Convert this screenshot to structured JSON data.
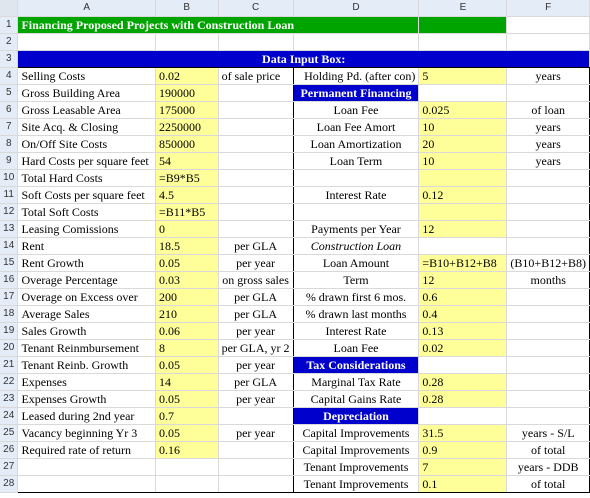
{
  "columns": [
    "A",
    "B",
    "C",
    "D",
    "E",
    "F"
  ],
  "row_numbers": [
    "1",
    "2",
    "3",
    "4",
    "5",
    "6",
    "7",
    "8",
    "9",
    "10",
    "11",
    "12",
    "13",
    "14",
    "15",
    "16",
    "17",
    "18",
    "19",
    "20",
    "21",
    "22",
    "23",
    "24",
    "25",
    "26",
    "27",
    "28"
  ],
  "title": "Financing Proposed Projects with Construction Loan",
  "data_input_box": "Data Input Box:",
  "rows": {
    "r4": {
      "a": "Selling Costs",
      "b": "0.02",
      "c": "of sale price",
      "d": "Holding Pd. (after con)",
      "e": "5",
      "f": "years"
    },
    "r5": {
      "a": "Gross Building Area",
      "b": "190000",
      "c": "",
      "d": "Permanent Financing",
      "e": "",
      "f": ""
    },
    "r6": {
      "a": "Gross Leasable Area",
      "b": "175000",
      "c": "",
      "d": "Loan Fee",
      "e": "0.025",
      "f": "of loan"
    },
    "r7": {
      "a": "Site Acq. & Closing",
      "b": "2250000",
      "c": "",
      "d": "Loan Fee Amort",
      "e": "10",
      "f": "years"
    },
    "r8": {
      "a": "On/Off Site Costs",
      "b": "850000",
      "c": "",
      "d": "Loan Amortization",
      "e": "20",
      "f": "years"
    },
    "r9": {
      "a": "Hard Costs per square feet",
      "b": "54",
      "c": "",
      "d": "Loan Term",
      "e": "10",
      "f": "years"
    },
    "r10": {
      "a": "Total Hard Costs",
      "b": "=B9*B5",
      "c": "",
      "d": "",
      "e": "",
      "f": ""
    },
    "r11": {
      "a": "Soft Costs per square feet",
      "b": "4.5",
      "c": "",
      "d": "Interest Rate",
      "e": "0.12",
      "f": ""
    },
    "r12": {
      "a": "Total Soft Costs",
      "b": "=B11*B5",
      "c": "",
      "d": "",
      "e": "",
      "f": ""
    },
    "r13": {
      "a": "Leasing Comissions",
      "b": "0",
      "c": "",
      "d": "Payments per Year",
      "e": "12",
      "f": ""
    },
    "r14": {
      "a": "Rent",
      "b": "18.5",
      "c": "per GLA",
      "d": "Construction Loan",
      "e": "",
      "f": ""
    },
    "r15": {
      "a": "Rent Growth",
      "b": "0.05",
      "c": "per year",
      "d": "Loan Amount",
      "e": "=B10+B12+B8",
      "f": "(B10+B12+B8)"
    },
    "r16": {
      "a": "Overage Percentage",
      "b": "0.03",
      "c": "on gross sales",
      "d": "Term",
      "e": "12",
      "f": "months"
    },
    "r17": {
      "a": "Overage on Excess over",
      "b": "200",
      "c": "per GLA",
      "d": "% drawn first 6 mos.",
      "e": "0.6",
      "f": ""
    },
    "r18": {
      "a": "Average Sales",
      "b": "210",
      "c": "per GLA",
      "d": "% drawn last months",
      "e": "0.4",
      "f": ""
    },
    "r19": {
      "a": "Sales Growth",
      "b": "0.06",
      "c": "per year",
      "d": "Interest Rate",
      "e": "0.13",
      "f": ""
    },
    "r20": {
      "a": "Tenant Reinmbursement",
      "b": "8",
      "c": "per GLA, yr 2",
      "d": "Loan Fee",
      "e": "0.02",
      "f": ""
    },
    "r21": {
      "a": "Tenant Reinb. Growth",
      "b": "0.05",
      "c": "per year",
      "d": "Tax Considerations",
      "e": "",
      "f": ""
    },
    "r22": {
      "a": "Expenses",
      "b": "14",
      "c": "per GLA",
      "d": "Marginal Tax Rate",
      "e": "0.28",
      "f": ""
    },
    "r23": {
      "a": "Expenses Growth",
      "b": "0.05",
      "c": "per year",
      "d": "Capital Gains Rate",
      "e": "0.28",
      "f": ""
    },
    "r24": {
      "a": "Leased during 2nd year",
      "b": "0.7",
      "c": "",
      "d": "Depreciation",
      "e": "",
      "f": ""
    },
    "r25": {
      "a": "Vacancy beginning Yr 3",
      "b": "0.05",
      "c": "per year",
      "d": "Capital Improvements",
      "e": "31.5",
      "f": "years - S/L"
    },
    "r26": {
      "a": "Required rate of return",
      "b": "0.16",
      "c": "",
      "d": "Capital Improvements",
      "e": "0.9",
      "f": "of total"
    },
    "r27": {
      "a": "",
      "b": "",
      "c": "",
      "d": "Tenant Improvements",
      "e": "7",
      "f": "years - DDB"
    },
    "r28": {
      "a": "",
      "b": "",
      "c": "",
      "d": "Tenant Improvements",
      "e": "0.1",
      "f": "of total"
    }
  },
  "colors": {
    "title_bg": "#00a400",
    "header_bg": "#0000cc",
    "input_bg": "#ffff99"
  }
}
